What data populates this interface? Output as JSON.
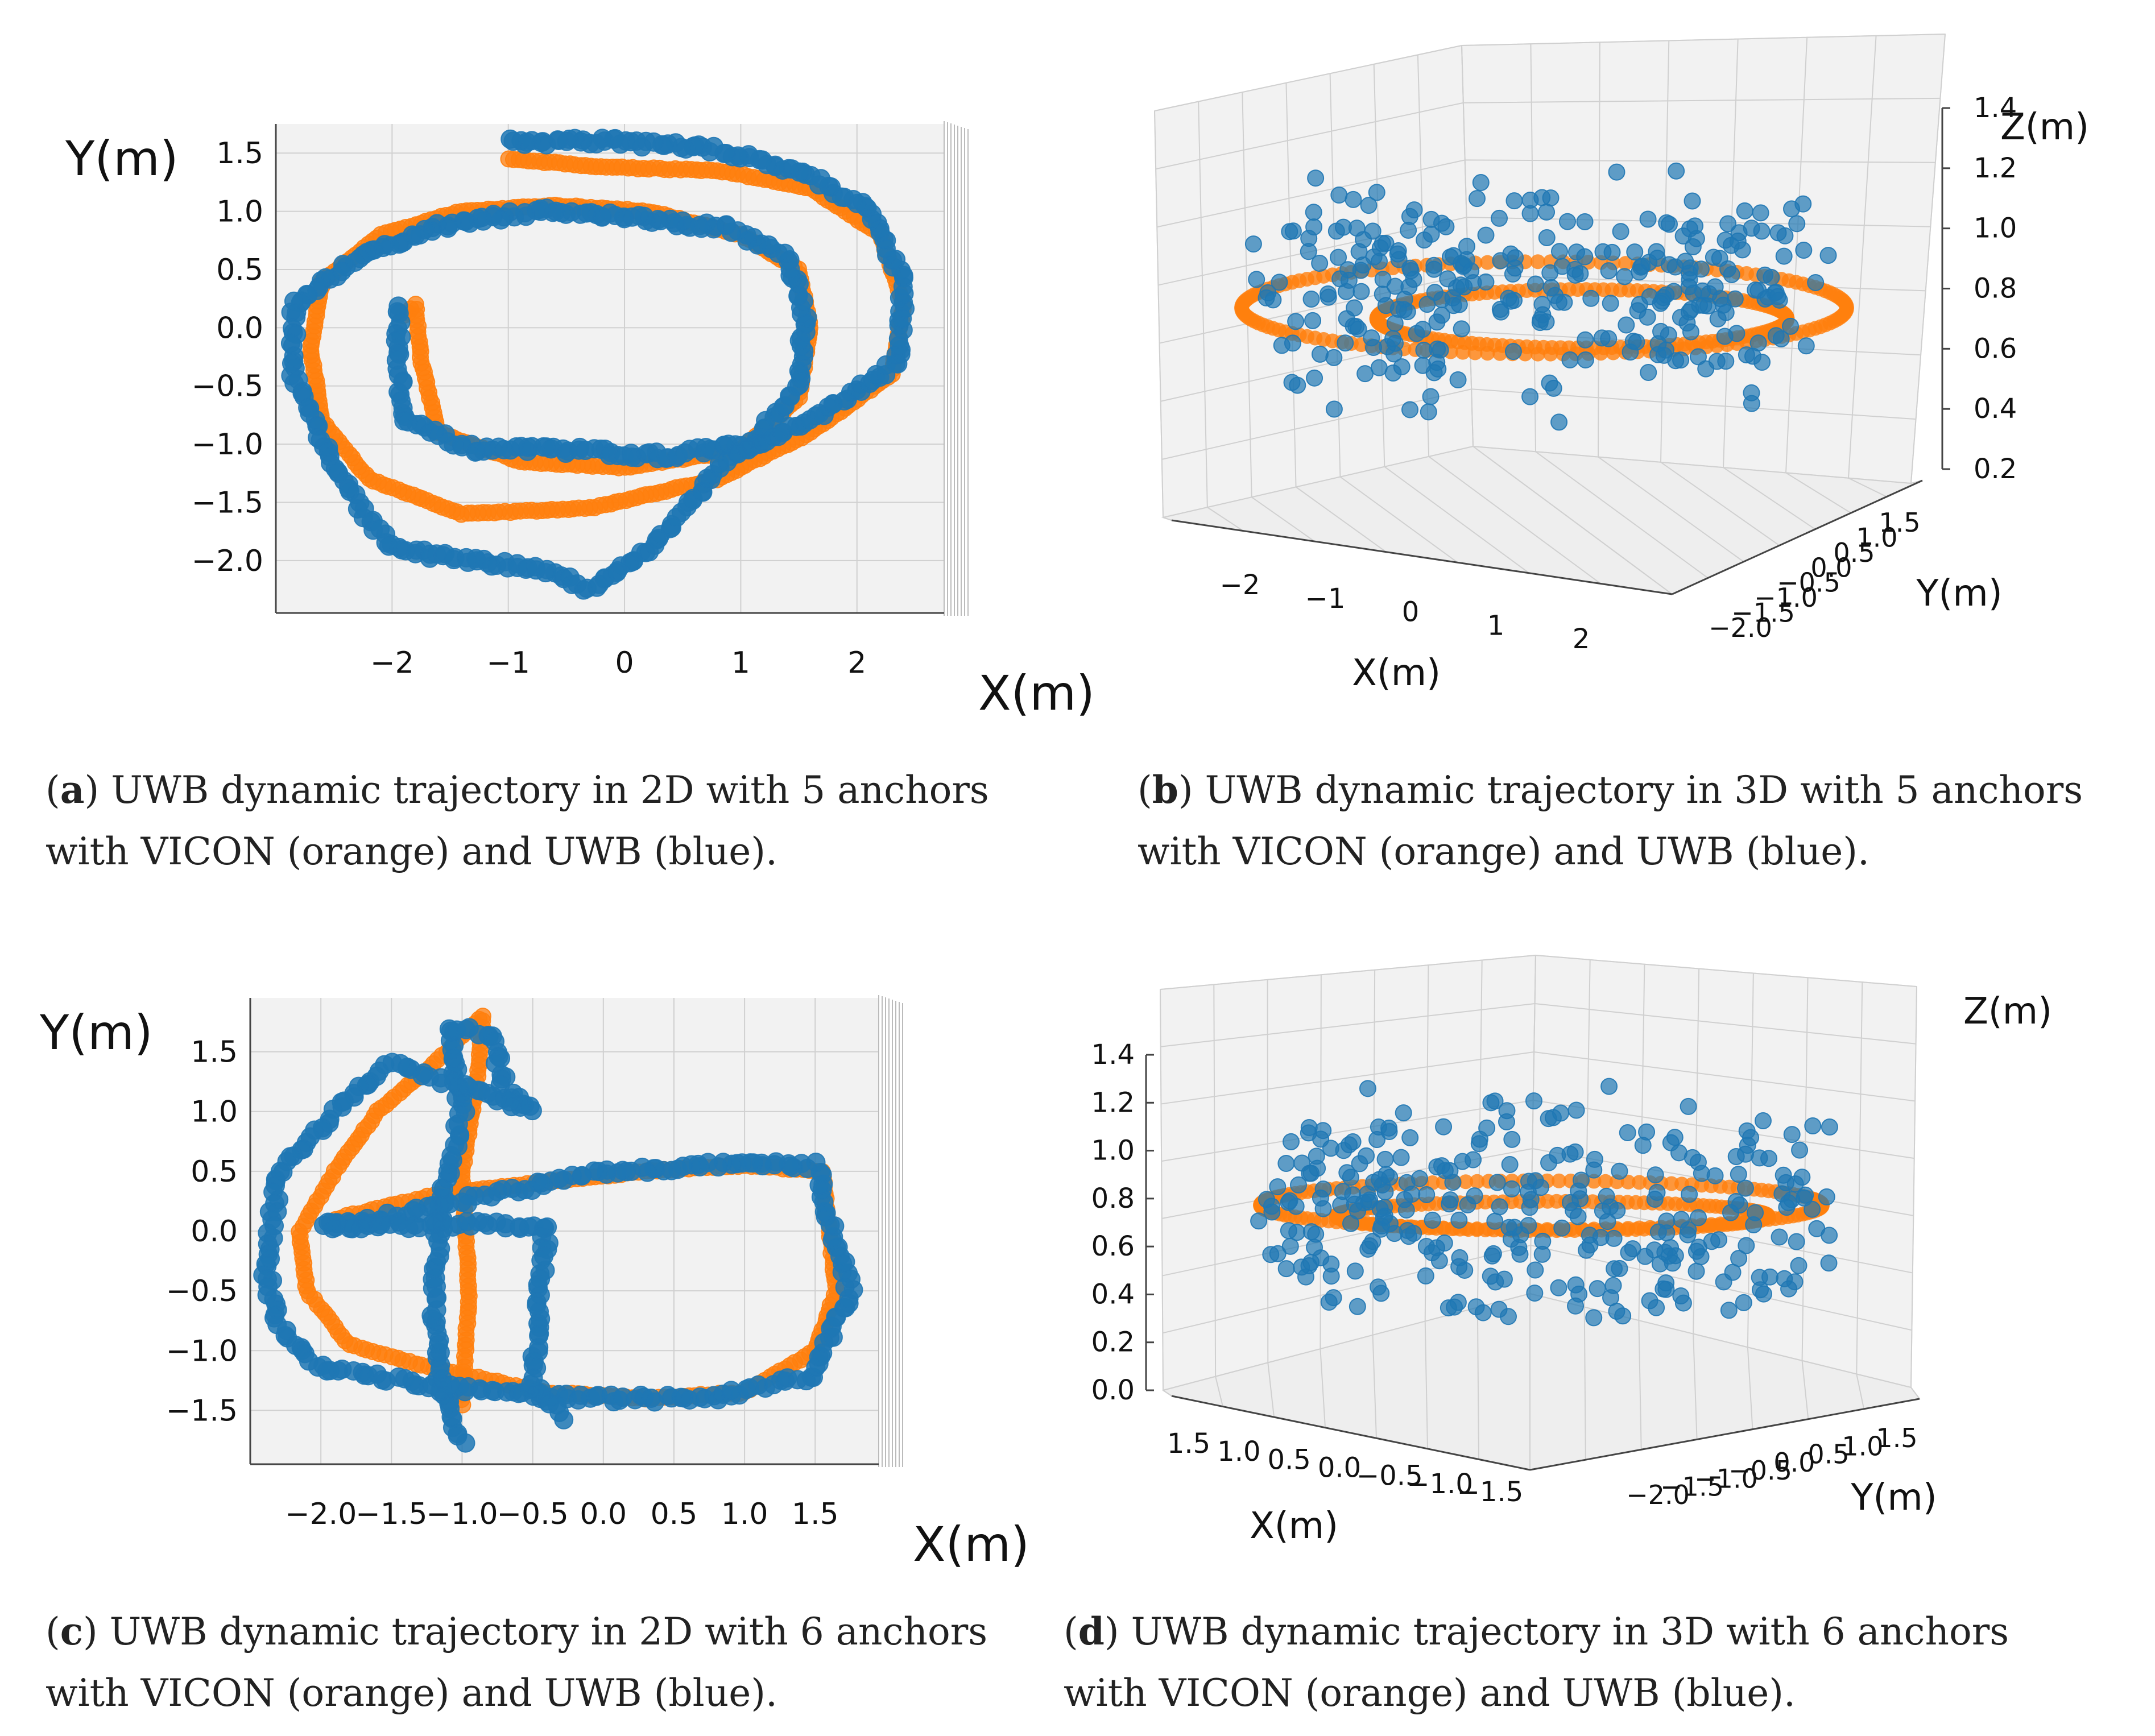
{
  "colors": {
    "vicon": "#ff7f0e",
    "uwb": "#1f77b4"
  },
  "chart_data": [
    {
      "id": "a",
      "type": "scatter",
      "projection": "2d",
      "xlabel": "X(m)",
      "ylabel": "Y(m)",
      "xticks": [
        "−2",
        "−1",
        "0",
        "1",
        "2"
      ],
      "yticks": [
        "1.5",
        "1.0",
        "0.5",
        "0.0",
        "−0.5",
        "−1.0",
        "−1.5",
        "−2.0"
      ],
      "xlim": [
        -3.0,
        2.75
      ],
      "ylim": [
        -2.45,
        1.75
      ],
      "series": [
        {
          "name": "VICON",
          "color": "orange",
          "path": [
            [
              -1.9,
              0.1
            ],
            [
              -1.8,
              0.2
            ],
            [
              -1.75,
              -0.3
            ],
            [
              -1.6,
              -0.9
            ],
            [
              -0.9,
              -1.15
            ],
            [
              0,
              -1.2
            ],
            [
              1.0,
              -1.05
            ],
            [
              1.5,
              -0.6
            ],
            [
              1.6,
              0
            ],
            [
              1.5,
              0.5
            ],
            [
              1.0,
              0.8
            ],
            [
              0.2,
              1.0
            ],
            [
              -0.6,
              1.05
            ],
            [
              -1.4,
              1.0
            ],
            [
              -2.1,
              0.8
            ],
            [
              -2.6,
              0.4
            ],
            [
              -2.7,
              -0.2
            ],
            [
              -2.6,
              -0.8
            ],
            [
              -2.2,
              -1.3
            ],
            [
              -1.4,
              -1.6
            ],
            [
              -0.3,
              -1.55
            ],
            [
              0.8,
              -1.3
            ],
            [
              1.6,
              -0.9
            ],
            [
              2.3,
              -0.4
            ],
            [
              2.4,
              0.2
            ],
            [
              2.2,
              0.8
            ],
            [
              1.6,
              1.2
            ],
            [
              0.8,
              1.35
            ],
            [
              -0.2,
              1.38
            ],
            [
              -1.0,
              1.45
            ]
          ]
        },
        {
          "name": "UWB",
          "color": "blue",
          "path": [
            [
              -1.95,
              0.2
            ],
            [
              -1.95,
              -0.25
            ],
            [
              -1.9,
              -0.8
            ],
            [
              -1.3,
              -1.05
            ],
            [
              -0.5,
              -1.05
            ],
            [
              0.3,
              -1.1
            ],
            [
              1.1,
              -1.0
            ],
            [
              1.5,
              -0.5
            ],
            [
              1.55,
              0.1
            ],
            [
              1.4,
              0.6
            ],
            [
              0.9,
              0.85
            ],
            [
              0.1,
              0.95
            ],
            [
              -0.7,
              1.0
            ],
            [
              -1.5,
              0.9
            ],
            [
              -2.3,
              0.6
            ],
            [
              -2.85,
              0.2
            ],
            [
              -2.85,
              -0.4
            ],
            [
              -2.6,
              -1.0
            ],
            [
              -2.3,
              -1.5
            ],
            [
              -2.0,
              -1.9
            ],
            [
              -1.3,
              -2.0
            ],
            [
              -0.6,
              -2.1
            ],
            [
              -0.3,
              -2.25
            ],
            [
              0.2,
              -1.9
            ],
            [
              0.5,
              -1.6
            ],
            [
              0.9,
              -1.1
            ],
            [
              1.6,
              -0.8
            ],
            [
              2.35,
              -0.3
            ],
            [
              2.4,
              0.4
            ],
            [
              2.1,
              1.0
            ],
            [
              1.5,
              1.35
            ],
            [
              0.7,
              1.55
            ],
            [
              -0.2,
              1.6
            ],
            [
              -1.0,
              1.6
            ]
          ]
        }
      ]
    },
    {
      "id": "b",
      "type": "scatter",
      "projection": "3d",
      "xlabel": "X(m)",
      "ylabel": "Y(m)",
      "zlabel": "Z(m)",
      "xticks": [
        "−2",
        "−1",
        "0",
        "1",
        "2"
      ],
      "yticks": [
        "−2.0",
        "−1.5",
        "−1.0",
        "−0.5",
        "0.0",
        "0.5",
        "1.0",
        "1.5"
      ],
      "zticks": [
        "0.2",
        "0.4",
        "0.6",
        "0.8",
        "1.0",
        "1.2",
        "1.4"
      ],
      "zlim": [
        0.2,
        1.4
      ],
      "series": [
        {
          "name": "VICON",
          "color": "orange",
          "z": 0.7,
          "loops": [
            [
              0.0,
              -0.1,
              2.8,
              0.95
            ],
            [
              0.35,
              0.0,
              1.9,
              0.6
            ]
          ]
        },
        {
          "name": "UWB",
          "color": "blue",
          "z_range": [
            0.25,
            1.4
          ]
        }
      ]
    },
    {
      "id": "c",
      "type": "scatter",
      "projection": "2d",
      "xlabel": "X(m)",
      "ylabel": "Y(m)",
      "xticks": [
        "−2.0",
        "−1.5",
        "−1.0",
        "−0.5",
        "0.0",
        "0.5",
        "1.0",
        "1.5"
      ],
      "yticks": [
        "1.5",
        "1.0",
        "0.5",
        "0.0",
        "−0.5",
        "−1.0",
        "−1.5"
      ],
      "xlim": [
        -2.5,
        1.95
      ],
      "ylim": [
        -1.95,
        1.95
      ],
      "series": [
        {
          "name": "VICON",
          "color": "orange",
          "path": [
            [
              -1.0,
              -1.45
            ],
            [
              -0.95,
              -0.5
            ],
            [
              -1.0,
              0.5
            ],
            [
              -0.9,
              1.2
            ],
            [
              -0.85,
              1.8
            ],
            [
              -1.2,
              1.4
            ],
            [
              -1.6,
              1.0
            ],
            [
              -1.9,
              0.5
            ],
            [
              -2.15,
              0
            ],
            [
              -2.1,
              -0.5
            ],
            [
              -1.8,
              -0.95
            ],
            [
              -1.2,
              -1.15
            ],
            [
              -0.4,
              -1.35
            ],
            [
              0.3,
              -1.4
            ],
            [
              1.0,
              -1.35
            ],
            [
              1.5,
              -1.0
            ],
            [
              1.65,
              -0.5
            ],
            [
              1.6,
              0
            ],
            [
              1.55,
              0.5
            ],
            [
              1.0,
              0.55
            ],
            [
              0.3,
              0.5
            ],
            [
              -0.5,
              0.4
            ],
            [
              -1.2,
              0.3
            ],
            [
              -1.9,
              0.1
            ]
          ]
        },
        {
          "name": "UWB",
          "color": "blue",
          "path": [
            [
              -1.0,
              -1.75
            ],
            [
              -1.15,
              -1.3
            ],
            [
              -1.2,
              -0.5
            ],
            [
              -1.15,
              0.3
            ],
            [
              -1.0,
              1.0
            ],
            [
              -1.1,
              1.7
            ],
            [
              -0.8,
              1.65
            ],
            [
              -0.7,
              1.2
            ],
            [
              -0.5,
              1.0
            ],
            [
              -1.5,
              1.4
            ],
            [
              -1.9,
              1.0
            ],
            [
              -2.3,
              0.45
            ],
            [
              -2.4,
              -0.3
            ],
            [
              -2.3,
              -0.8
            ],
            [
              -2.0,
              -1.15
            ],
            [
              -1.2,
              -1.3
            ],
            [
              -0.2,
              -1.4
            ],
            [
              0.8,
              -1.4
            ],
            [
              1.5,
              -1.2
            ],
            [
              1.75,
              -0.5
            ],
            [
              1.6,
              0.1
            ],
            [
              1.5,
              0.55
            ],
            [
              0.8,
              0.55
            ],
            [
              0.0,
              0.5
            ],
            [
              -0.8,
              0.3
            ],
            [
              -1.6,
              0.1
            ],
            [
              -2.0,
              0.05
            ],
            [
              -0.4,
              0.05
            ],
            [
              -0.45,
              -0.5
            ],
            [
              -0.5,
              -1.3
            ],
            [
              -0.3,
              -1.55
            ]
          ]
        }
      ]
    },
    {
      "id": "d",
      "type": "scatter",
      "projection": "3d",
      "xlabel": "X(m)",
      "ylabel": "Y(m)",
      "zlabel": "Z(m)",
      "xticks": [
        "1.5",
        "1.0",
        "0.5",
        "0.0",
        "−0.5",
        "−1.0",
        "−1.5"
      ],
      "yticks": [
        "−2.0",
        "−1.5",
        "−1.0",
        "−0.5",
        "0.0",
        "0.5",
        "1.0",
        "1.5"
      ],
      "zticks": [
        "0.0",
        "0.2",
        "0.4",
        "0.6",
        "0.8",
        "1.0",
        "1.2",
        "1.4"
      ],
      "zlim": [
        0.0,
        1.4
      ],
      "series": [
        {
          "name": "VICON",
          "color": "orange",
          "z": 0.75,
          "loops": [
            [
              0.0,
              -0.05,
              2.6,
              0.5
            ],
            [
              0.1,
              0.05,
              2.0,
              0.3
            ]
          ]
        },
        {
          "name": "UWB",
          "color": "blue",
          "z_range": [
            0.0,
            1.4
          ]
        }
      ]
    }
  ],
  "captions": [
    {
      "letter": "a",
      "text": ") UWB dynamic trajectory in 2D with 5 anchors",
      "text2": "with VICON (orange) and UWB (blue)."
    },
    {
      "letter": "b",
      "text": ") UWB dynamic trajectory in 3D with 5 anchors",
      "text2": "with VICON (orange) and UWB (blue)."
    },
    {
      "letter": "c",
      "text": ") UWB dynamic trajectory in 2D with 6 anchors",
      "text2": "with VICON (orange) and UWB (blue)."
    },
    {
      "letter": "d",
      "text": ") UWB dynamic trajectory in 3D with 6 anchors",
      "text2": "with VICON (orange) and UWB (blue)."
    }
  ]
}
